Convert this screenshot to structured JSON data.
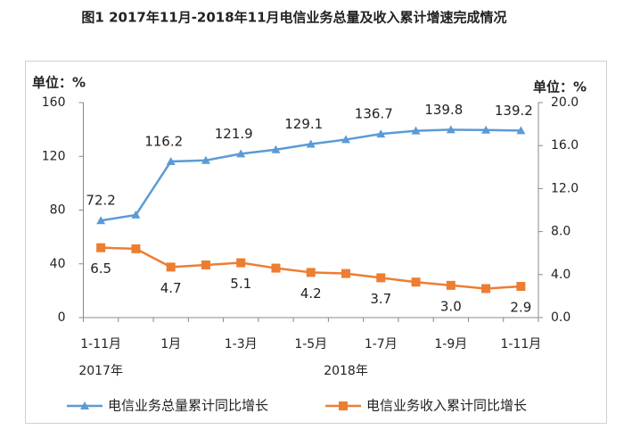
{
  "chart_data": {
    "type": "line",
    "title": "图1 2017年11月-2018年11月电信业务总量及收入累计增速完成情况",
    "y_unit_label": "单位：%",
    "y2_unit_label": "单位：%",
    "categories": [
      "1-11月",
      null,
      "1月",
      null,
      "1-3月",
      null,
      "1-5月",
      null,
      "1-7月",
      null,
      "1-9月",
      null,
      "1-11月"
    ],
    "year_labels": [
      "2017年",
      "2018年"
    ],
    "ylim": [
      0,
      160
    ],
    "yticks": [
      0,
      40,
      80,
      120,
      160
    ],
    "y2lim": [
      0,
      20
    ],
    "y2ticks": [
      {
        "value": 0,
        "label": "0.0"
      },
      {
        "value": 4,
        "label": "4.0"
      },
      {
        "value": 8,
        "label": "8.0"
      },
      {
        "value": 12,
        "label": "12.0"
      },
      {
        "value": 16,
        "label": "16.0"
      },
      {
        "value": 20,
        "label": "20.0"
      }
    ],
    "legend": "bottom",
    "series": [
      {
        "name": "电信业务总量累计同比增长",
        "color": "#5b9bd5",
        "marker": "triangle",
        "values": [
          72.2,
          76.4,
          116.2,
          117.0,
          121.9,
          125.0,
          129.1,
          132.5,
          136.7,
          139.0,
          139.8,
          139.6,
          139.2
        ],
        "value_labels": [
          "72.2",
          null,
          "116.2",
          null,
          "121.9",
          null,
          "129.1",
          null,
          "136.7",
          null,
          "139.8",
          null,
          "139.2"
        ]
      },
      {
        "name": "电信业务收入累计同比增长",
        "color": "#ed7d31",
        "marker": "square",
        "axis": "y2",
        "values": [
          6.5,
          6.4,
          4.7,
          4.9,
          5.1,
          4.6,
          4.2,
          4.1,
          3.7,
          3.3,
          3.0,
          2.7,
          2.9
        ],
        "value_labels": [
          "6.5",
          null,
          "4.7",
          null,
          "5.1",
          null,
          "4.2",
          null,
          "3.7",
          null,
          "3.0",
          null,
          "2.9"
        ]
      }
    ]
  }
}
